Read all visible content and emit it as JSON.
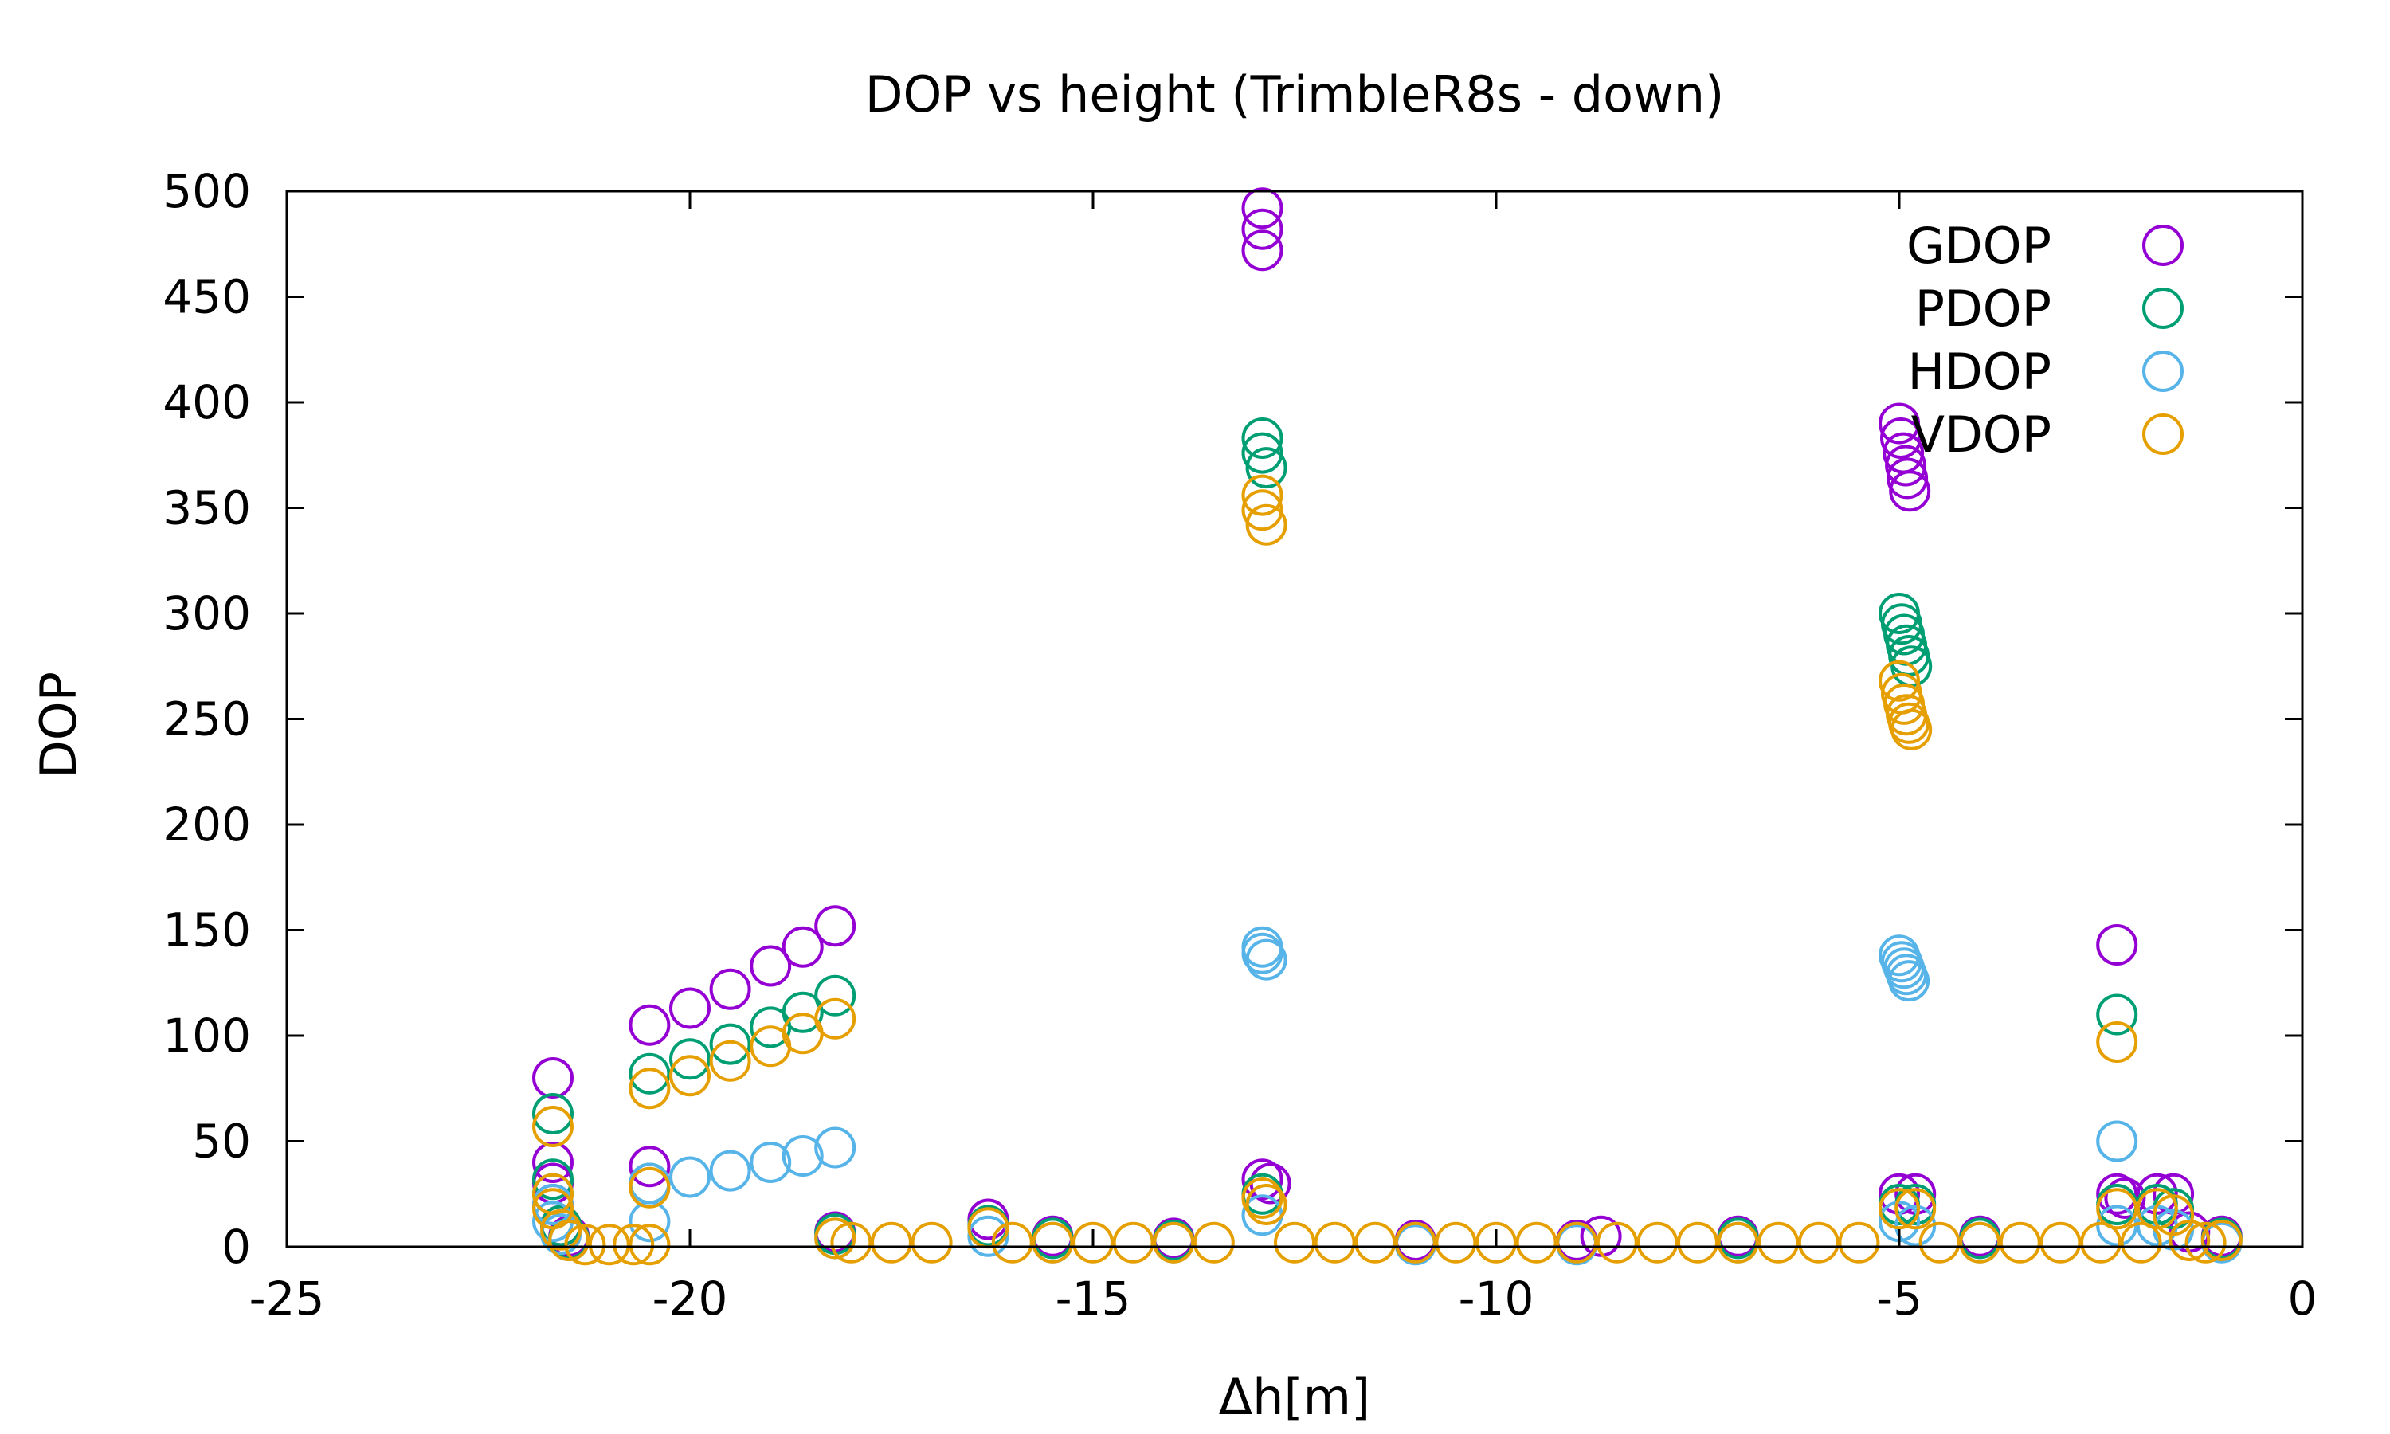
{
  "chart_data": {
    "type": "scatter",
    "title": "DOP vs height (TrimbleR8s - down)",
    "xlabel": "Δh[m]",
    "ylabel": "DOP",
    "xlim": [
      -25,
      0
    ],
    "ylim": [
      0,
      500
    ],
    "xticks": [
      -25,
      -20,
      -15,
      -10,
      -5,
      0
    ],
    "yticks": [
      0,
      50,
      100,
      150,
      200,
      250,
      300,
      350,
      400,
      450,
      500
    ],
    "xtick_labels": [
      "-25",
      "-20",
      "-15",
      "-10",
      "-5",
      "0"
    ],
    "ytick_labels": [
      "0",
      "50",
      "100",
      "150",
      "200",
      "250",
      "300",
      "350",
      "400",
      "450",
      "500"
    ],
    "marker": "open-circle",
    "grid": false,
    "legend_position": "top-right",
    "series": [
      {
        "name": "GDOP",
        "color": "#9400d3",
        "points": [
          [
            -21.7,
            80
          ],
          [
            -21.7,
            40
          ],
          [
            -21.7,
            30
          ],
          [
            -21.7,
            20
          ],
          [
            -21.6,
            10
          ],
          [
            -21.5,
            5
          ],
          [
            -20.5,
            38
          ],
          [
            -20.5,
            105
          ],
          [
            -20.0,
            113
          ],
          [
            -19.5,
            122
          ],
          [
            -19.0,
            133
          ],
          [
            -18.6,
            142
          ],
          [
            -18.2,
            152
          ],
          [
            -18.2,
            7
          ],
          [
            -16.3,
            13
          ],
          [
            -15.5,
            5
          ],
          [
            -14.0,
            4
          ],
          [
            -12.9,
            492
          ],
          [
            -12.9,
            482
          ],
          [
            -12.9,
            472
          ],
          [
            -12.9,
            32
          ],
          [
            -12.8,
            30
          ],
          [
            -11.0,
            3
          ],
          [
            -9.0,
            3
          ],
          [
            -8.7,
            5
          ],
          [
            -7.0,
            5
          ],
          [
            -5.0,
            390
          ],
          [
            -4.98,
            383
          ],
          [
            -4.95,
            376
          ],
          [
            -4.92,
            370
          ],
          [
            -4.9,
            364
          ],
          [
            -4.87,
            358
          ],
          [
            -5.0,
            25
          ],
          [
            -4.8,
            25
          ],
          [
            -4.0,
            5
          ],
          [
            -2.3,
            143
          ],
          [
            -2.3,
            25
          ],
          [
            -2.2,
            23
          ],
          [
            -1.8,
            25
          ],
          [
            -1.6,
            25
          ],
          [
            -1.4,
            7
          ],
          [
            -1.0,
            5
          ]
        ]
      },
      {
        "name": "PDOP",
        "color": "#009e73",
        "points": [
          [
            -21.7,
            63
          ],
          [
            -21.7,
            32
          ],
          [
            -21.7,
            25
          ],
          [
            -21.6,
            10
          ],
          [
            -21.5,
            4
          ],
          [
            -20.5,
            30
          ],
          [
            -20.5,
            82
          ],
          [
            -20.0,
            89
          ],
          [
            -19.5,
            96
          ],
          [
            -19.0,
            104
          ],
          [
            -18.6,
            111
          ],
          [
            -18.2,
            119
          ],
          [
            -18.2,
            6
          ],
          [
            -16.3,
            10
          ],
          [
            -15.5,
            4
          ],
          [
            -14.0,
            3
          ],
          [
            -12.9,
            383
          ],
          [
            -12.9,
            376
          ],
          [
            -12.85,
            369
          ],
          [
            -12.9,
            25
          ],
          [
            -11.0,
            2
          ],
          [
            -9.0,
            2
          ],
          [
            -7.0,
            4
          ],
          [
            -5.0,
            300
          ],
          [
            -4.97,
            295
          ],
          [
            -4.94,
            290
          ],
          [
            -4.91,
            285
          ],
          [
            -4.88,
            280
          ],
          [
            -4.85,
            275
          ],
          [
            -5.0,
            20
          ],
          [
            -4.8,
            20
          ],
          [
            -4.0,
            4
          ],
          [
            -2.3,
            110
          ],
          [
            -2.3,
            20
          ],
          [
            -1.8,
            20
          ],
          [
            -1.6,
            18
          ],
          [
            -1.0,
            4
          ]
        ]
      },
      {
        "name": "HDOP",
        "color": "#56b4e9",
        "points": [
          [
            -21.7,
            20
          ],
          [
            -21.7,
            12
          ],
          [
            -21.6,
            6
          ],
          [
            -21.5,
            3
          ],
          [
            -20.5,
            12
          ],
          [
            -20.5,
            30
          ],
          [
            -20.0,
            33
          ],
          [
            -19.5,
            36
          ],
          [
            -19.0,
            40
          ],
          [
            -18.6,
            43
          ],
          [
            -18.2,
            47
          ],
          [
            -18.2,
            4
          ],
          [
            -16.3,
            5
          ],
          [
            -15.5,
            2
          ],
          [
            -14.0,
            2
          ],
          [
            -12.9,
            142
          ],
          [
            -12.9,
            139
          ],
          [
            -12.85,
            136
          ],
          [
            -12.9,
            15
          ],
          [
            -11.0,
            1
          ],
          [
            -9.0,
            1
          ],
          [
            -7.0,
            2
          ],
          [
            -5.0,
            138
          ],
          [
            -4.97,
            135
          ],
          [
            -4.94,
            132
          ],
          [
            -4.91,
            129
          ],
          [
            -4.88,
            126
          ],
          [
            -5.0,
            12
          ],
          [
            -4.8,
            10
          ],
          [
            -4.0,
            2
          ],
          [
            -2.3,
            50
          ],
          [
            -2.3,
            10
          ],
          [
            -1.8,
            10
          ],
          [
            -1.6,
            8
          ],
          [
            -1.0,
            2
          ]
        ]
      },
      {
        "name": "VDOP",
        "color": "#e69f00",
        "points": [
          [
            -21.7,
            57
          ],
          [
            -21.7,
            25
          ],
          [
            -21.7,
            18
          ],
          [
            -21.6,
            8
          ],
          [
            -21.5,
            3
          ],
          [
            -21.3,
            1
          ],
          [
            -21.0,
            1
          ],
          [
            -20.7,
            1
          ],
          [
            -20.5,
            1
          ],
          [
            -20.5,
            28
          ],
          [
            -20.5,
            75
          ],
          [
            -20.0,
            81
          ],
          [
            -19.5,
            88
          ],
          [
            -19.0,
            95
          ],
          [
            -18.6,
            101
          ],
          [
            -18.2,
            108
          ],
          [
            -18.2,
            4
          ],
          [
            -18.0,
            2
          ],
          [
            -17.5,
            2
          ],
          [
            -17.0,
            2
          ],
          [
            -16.3,
            9
          ],
          [
            -16.0,
            2
          ],
          [
            -15.5,
            2
          ],
          [
            -15.0,
            2
          ],
          [
            -14.5,
            2
          ],
          [
            -14.0,
            2
          ],
          [
            -13.5,
            2
          ],
          [
            -12.9,
            356
          ],
          [
            -12.9,
            349
          ],
          [
            -12.85,
            342
          ],
          [
            -12.9,
            23
          ],
          [
            -12.85,
            20
          ],
          [
            -12.5,
            2
          ],
          [
            -12.0,
            2
          ],
          [
            -11.5,
            2
          ],
          [
            -11.0,
            2
          ],
          [
            -10.5,
            2
          ],
          [
            -10.0,
            2
          ],
          [
            -9.5,
            2
          ],
          [
            -9.0,
            2
          ],
          [
            -8.5,
            2
          ],
          [
            -8.0,
            2
          ],
          [
            -7.5,
            2
          ],
          [
            -7.0,
            2
          ],
          [
            -6.5,
            2
          ],
          [
            -6.0,
            2
          ],
          [
            -5.5,
            2
          ],
          [
            -5.0,
            268
          ],
          [
            -4.97,
            262
          ],
          [
            -4.94,
            257
          ],
          [
            -4.91,
            252
          ],
          [
            -4.88,
            248
          ],
          [
            -4.85,
            245
          ],
          [
            -5.0,
            18
          ],
          [
            -4.8,
            18
          ],
          [
            -4.5,
            2
          ],
          [
            -4.0,
            2
          ],
          [
            -3.5,
            2
          ],
          [
            -3.0,
            2
          ],
          [
            -2.5,
            2
          ],
          [
            -2.3,
            97
          ],
          [
            -2.3,
            18
          ],
          [
            -2.0,
            2
          ],
          [
            -1.8,
            18
          ],
          [
            -1.6,
            15
          ],
          [
            -1.4,
            3
          ],
          [
            -1.2,
            2
          ],
          [
            -1.0,
            3
          ]
        ]
      }
    ]
  }
}
